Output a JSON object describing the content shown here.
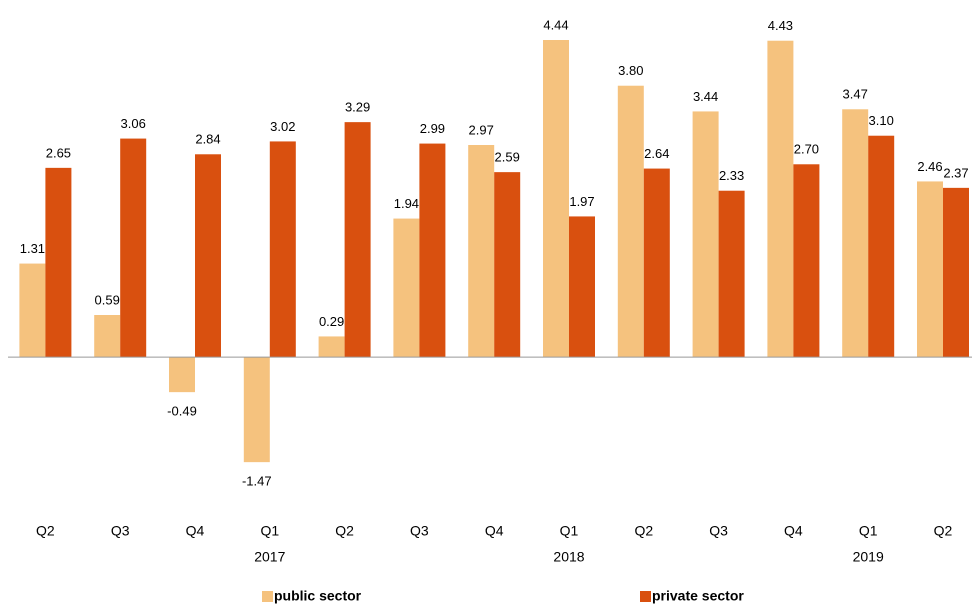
{
  "chart_data": {
    "type": "bar",
    "categories": [
      "Q2",
      "Q3",
      "Q4",
      "Q1",
      "Q2",
      "Q3",
      "Q4",
      "Q1",
      "Q2",
      "Q3",
      "Q4",
      "Q1",
      "Q2"
    ],
    "category_years": [
      null,
      null,
      null,
      "2017",
      null,
      null,
      null,
      "2018",
      null,
      null,
      null,
      "2019",
      null
    ],
    "series": [
      {
        "name": "public sector",
        "color": "#f5c27e",
        "values": [
          1.31,
          0.59,
          -0.49,
          -1.47,
          0.29,
          1.94,
          2.97,
          4.44,
          3.8,
          3.44,
          4.43,
          3.47,
          2.46
        ],
        "value_labels": [
          "1.31",
          "0.59",
          "-0.49",
          "-1.47",
          "0.29",
          "1.94",
          "2.97",
          "4.44",
          "3.80",
          "3.44",
          "4.43",
          "3.47",
          "2.46"
        ]
      },
      {
        "name": "private sector",
        "color": "#d9500f",
        "values": [
          2.65,
          3.06,
          2.84,
          3.02,
          3.29,
          2.99,
          2.59,
          1.97,
          2.64,
          2.33,
          2.7,
          3.1,
          2.37
        ],
        "value_labels": [
          "2.65",
          "3.06",
          "2.84",
          "3.02",
          "3.29",
          "2.99",
          "2.59",
          "1.97",
          "2.64",
          "2.33",
          "2.70",
          "3.10",
          "2.37"
        ]
      }
    ],
    "ylim": [
      -2,
      5
    ],
    "legend": "bottom"
  }
}
